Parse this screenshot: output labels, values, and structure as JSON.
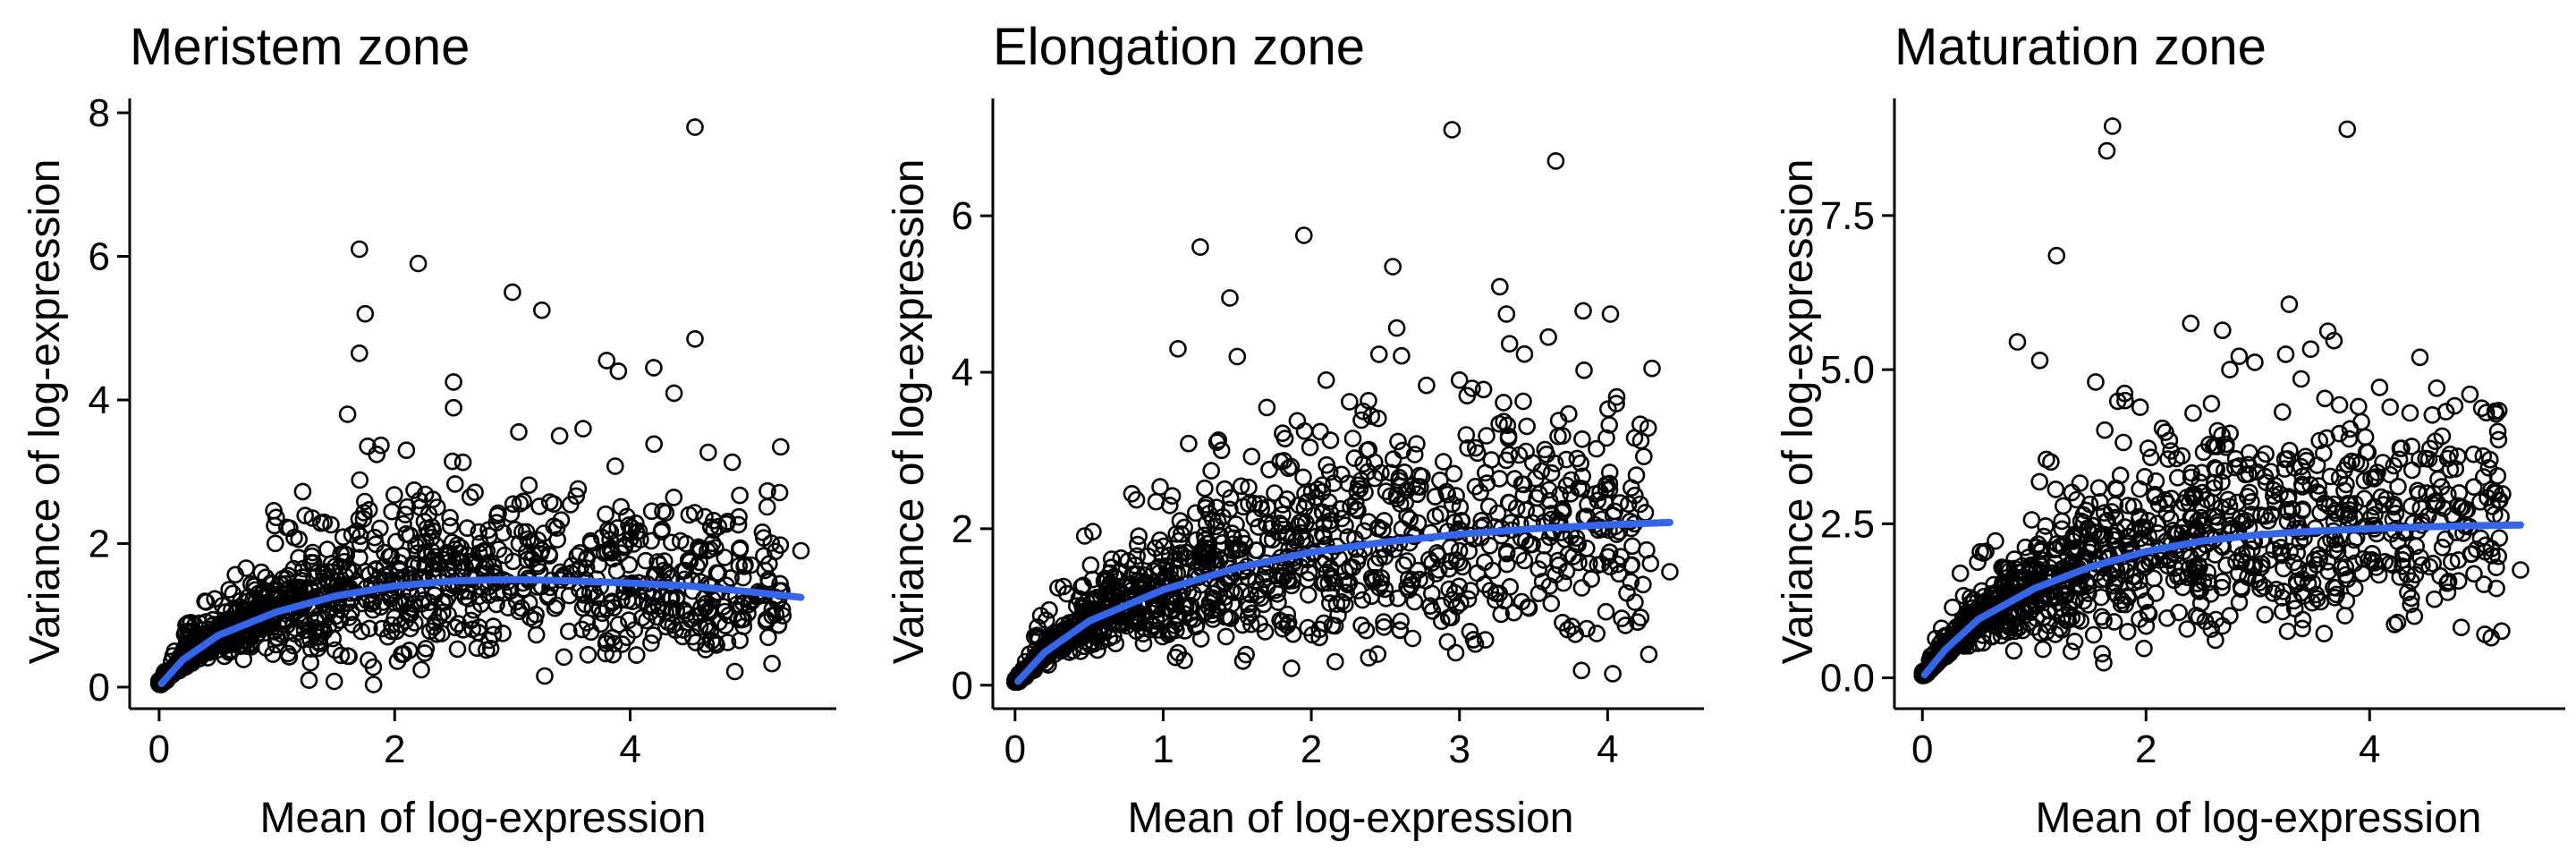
{
  "chart_data": [
    {
      "type": "scatter",
      "title": "Meristem zone",
      "xlabel": "Mean of log-expression",
      "ylabel": "Variance of log-expression",
      "xlim": [
        -0.25,
        5.75
      ],
      "ylim": [
        -0.3,
        8.2
      ],
      "xticks": [
        0,
        2,
        4
      ],
      "yticks": [
        0,
        2,
        4,
        6,
        8
      ],
      "xtick_labels": [
        "0",
        "2",
        "4"
      ],
      "ytick_labels": [
        "0",
        "2",
        "4",
        "6",
        "8"
      ],
      "grid": false,
      "trend_color": "#3366EE",
      "trend": {
        "x": [
          0.02,
          0.2,
          0.5,
          1.0,
          1.5,
          2.0,
          2.5,
          3.0,
          3.5,
          4.0,
          4.5,
          5.0,
          5.45
        ],
        "y": [
          0.05,
          0.38,
          0.72,
          1.05,
          1.27,
          1.41,
          1.48,
          1.5,
          1.48,
          1.45,
          1.41,
          1.33,
          1.25
        ]
      },
      "outliers": {
        "x": [
          4.55,
          1.7,
          2.2,
          1.75,
          3.0,
          3.25,
          1.7,
          3.9,
          4.55,
          3.8,
          4.2,
          3.6,
          5.45,
          2.5,
          1.6,
          3.4,
          2.1,
          4.5
        ],
        "y": [
          7.8,
          6.1,
          5.9,
          5.2,
          5.5,
          5.25,
          4.65,
          4.4,
          4.85,
          4.55,
          4.45,
          3.6,
          1.9,
          4.25,
          3.8,
          3.5,
          3.3,
          2.4
        ]
      },
      "cloud": {
        "n": 1300,
        "xmax": 5.3,
        "seed": 11
      }
    },
    {
      "type": "scatter",
      "title": "Elongation zone",
      "xlabel": "Mean of log-expression",
      "ylabel": "Variance of log-expression",
      "xlim": [
        -0.15,
        4.65
      ],
      "ylim": [
        -0.3,
        7.5
      ],
      "xticks": [
        0,
        1,
        2,
        3,
        4
      ],
      "yticks": [
        0,
        2,
        4,
        6
      ],
      "xtick_labels": [
        "0",
        "1",
        "2",
        "3",
        "4"
      ],
      "ytick_labels": [
        "0",
        "2",
        "4",
        "6"
      ],
      "grid": false,
      "trend_color": "#3366EE",
      "trend": {
        "x": [
          0.02,
          0.2,
          0.5,
          1.0,
          1.5,
          2.0,
          2.5,
          3.0,
          3.5,
          4.0,
          4.42
        ],
        "y": [
          0.05,
          0.42,
          0.82,
          1.22,
          1.5,
          1.7,
          1.83,
          1.93,
          2.0,
          2.05,
          2.08
        ]
      },
      "outliers": {
        "x": [
          2.95,
          3.65,
          1.95,
          1.25,
          2.55,
          1.45,
          1.1,
          3.6,
          4.3,
          1.5,
          2.1,
          1.7,
          3.0,
          2.35,
          4.42
        ],
        "y": [
          7.1,
          6.7,
          5.75,
          5.6,
          5.35,
          4.95,
          4.3,
          4.45,
          4.05,
          4.2,
          3.9,
          3.55,
          3.9,
          3.5,
          1.45
        ]
      },
      "cloud": {
        "n": 1300,
        "xmax": 4.3,
        "seed": 23
      }
    },
    {
      "type": "scatter",
      "title": "Maturation zone",
      "xlabel": "Mean of log-expression",
      "ylabel": "Variance of log-expression",
      "xlim": [
        -0.25,
        5.75
      ],
      "ylim": [
        -0.5,
        9.4
      ],
      "xticks": [
        0,
        2,
        4
      ],
      "yticks": [
        0,
        2.5,
        5,
        7.5
      ],
      "xtick_labels": [
        "0",
        "2",
        "4"
      ],
      "ytick_labels": [
        "0.0",
        "2.5",
        "5.0",
        "7.5"
      ],
      "grid": false,
      "trend_color": "#3366EE",
      "trend": {
        "x": [
          0.02,
          0.2,
          0.5,
          1.0,
          1.5,
          2.0,
          2.5,
          3.0,
          3.5,
          4.0,
          4.5,
          5.0,
          5.35
        ],
        "y": [
          0.05,
          0.45,
          0.95,
          1.45,
          1.8,
          2.05,
          2.22,
          2.32,
          2.38,
          2.42,
          2.45,
          2.47,
          2.48
        ]
      },
      "outliers": {
        "x": [
          1.7,
          1.65,
          3.8,
          1.2,
          0.85,
          2.4,
          3.25,
          4.45,
          4.6,
          1.05,
          2.75,
          1.55,
          5.35,
          4.4,
          4.8,
          3.9
        ],
        "y": [
          8.95,
          8.55,
          8.9,
          6.85,
          5.45,
          5.75,
          5.25,
          5.2,
          4.7,
          5.15,
          5.0,
          4.8,
          1.75,
          1.0,
          3.0,
          4.4
        ]
      },
      "cloud": {
        "n": 1300,
        "xmax": 5.2,
        "seed": 37
      }
    }
  ]
}
